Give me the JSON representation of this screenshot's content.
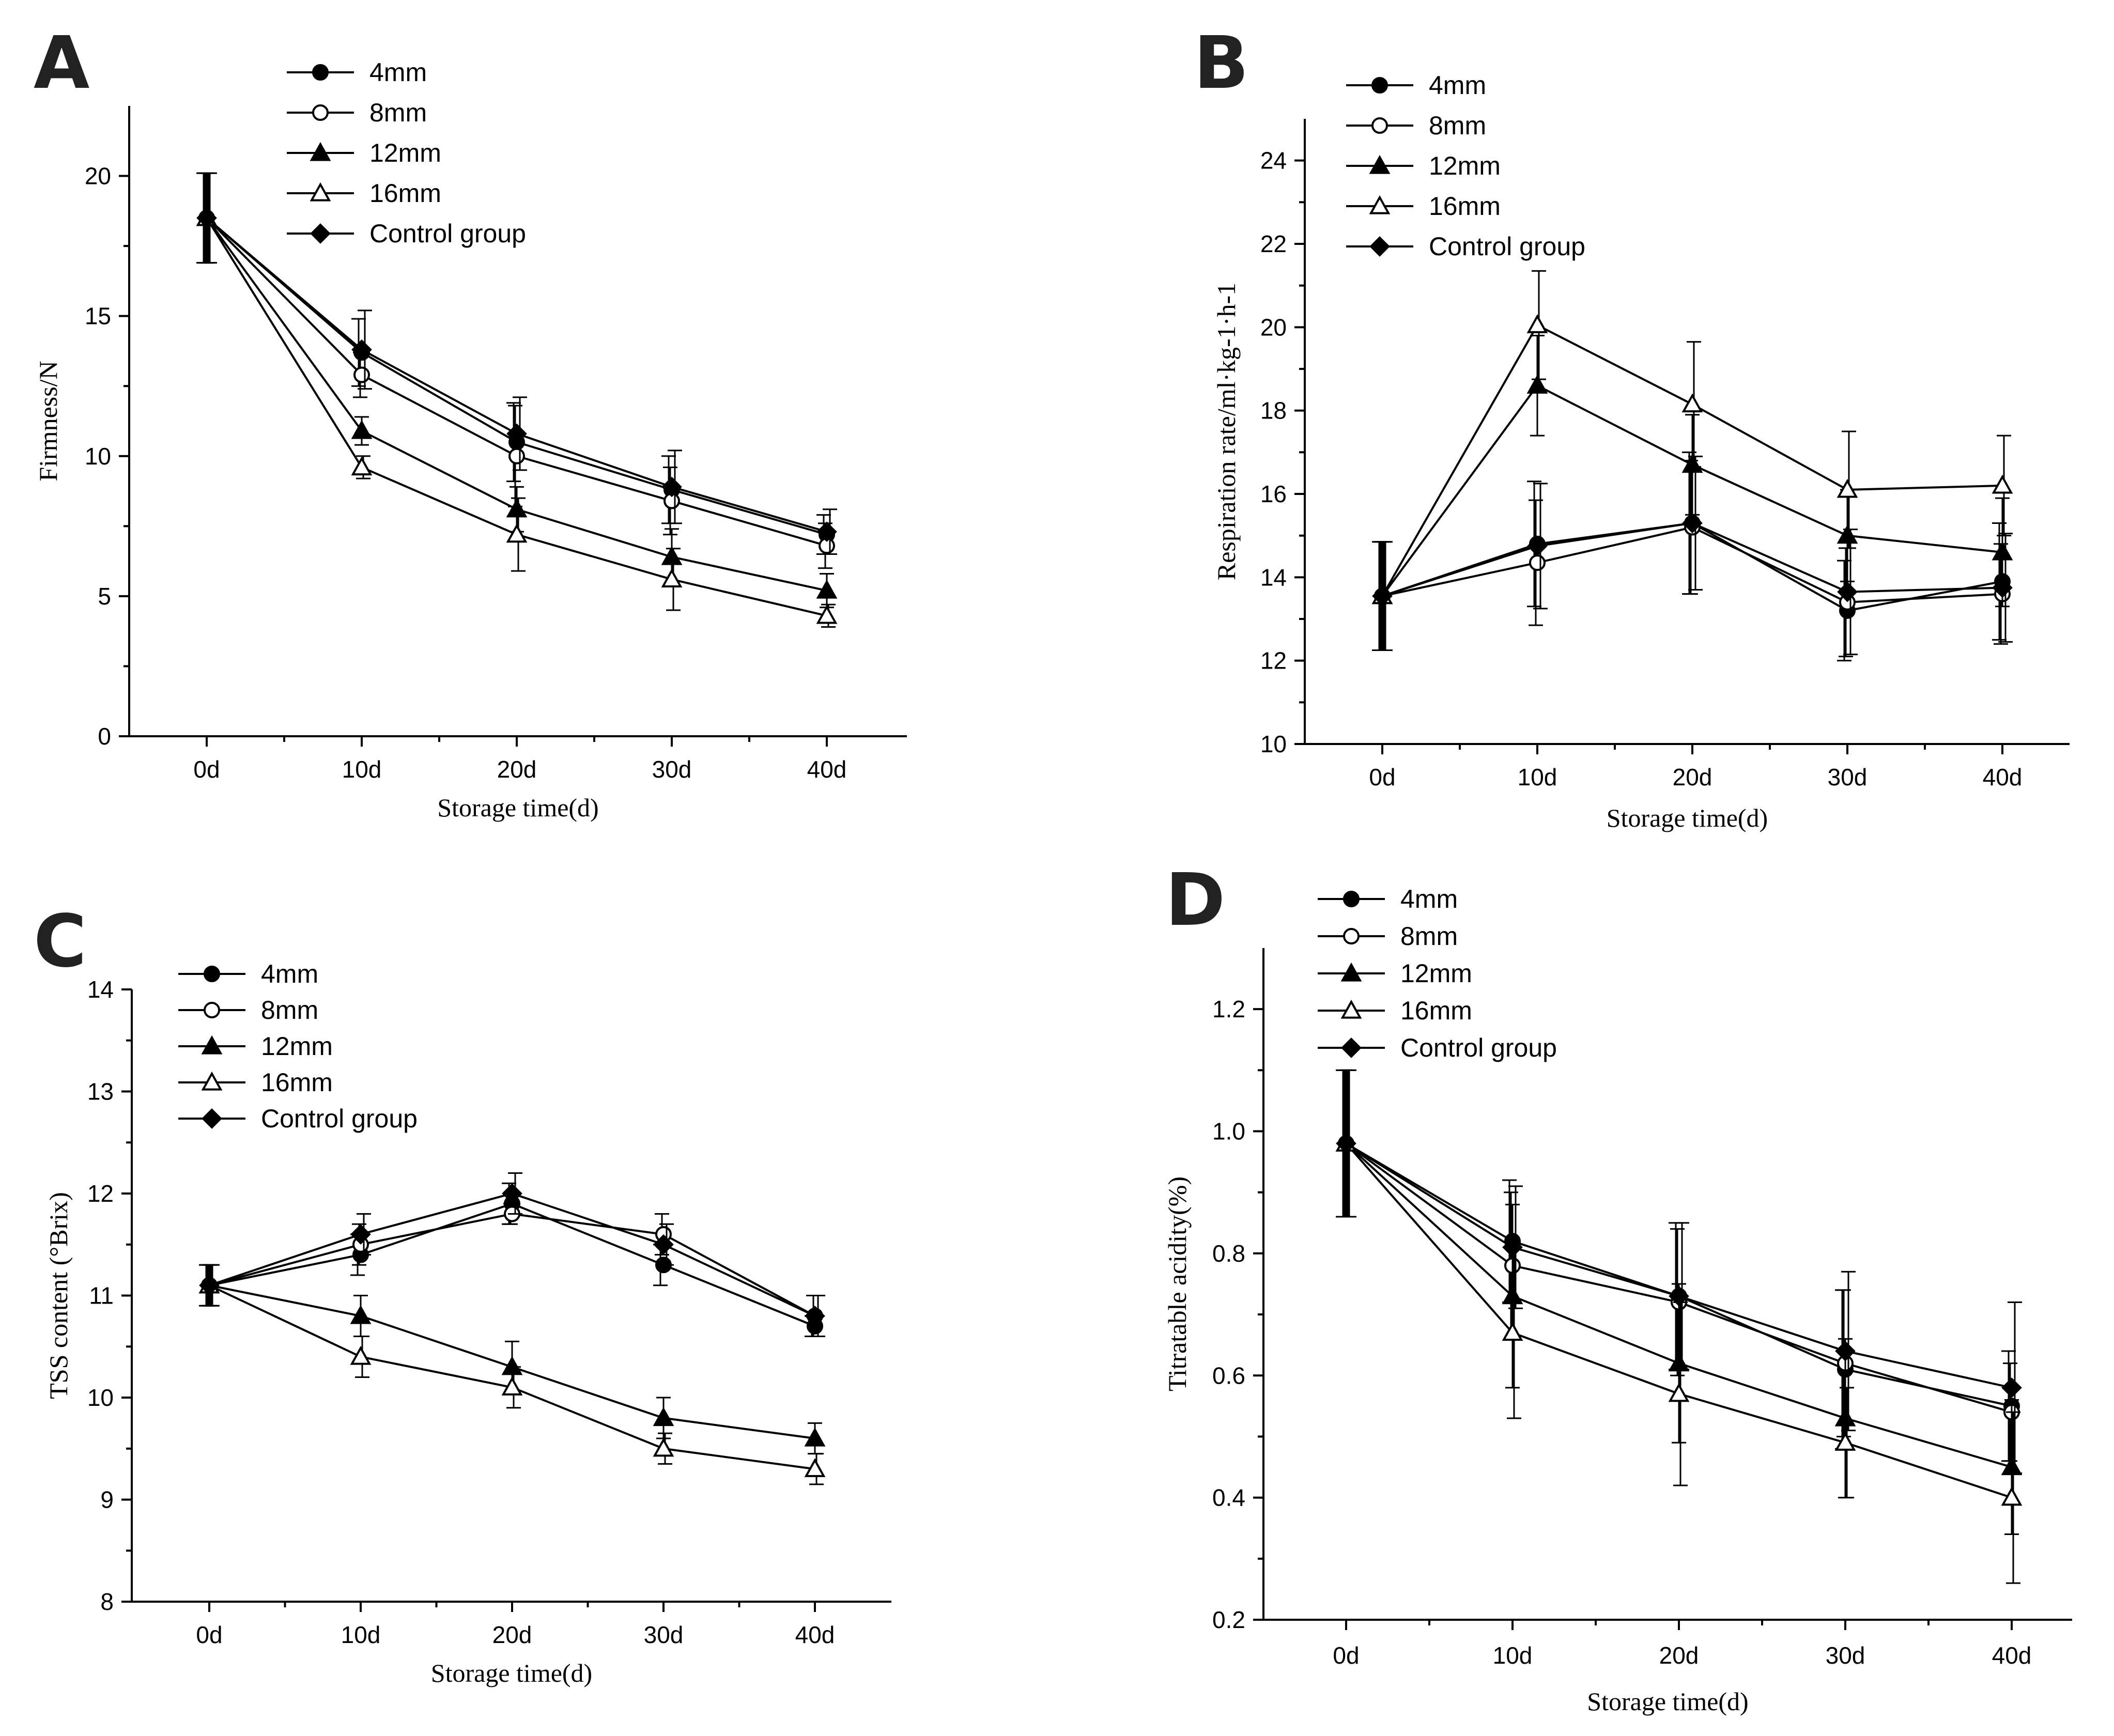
{
  "chart_data": [
    {
      "type": "line",
      "panel": "A",
      "categories": [
        "0d",
        "10d",
        "20d",
        "30d",
        "40d"
      ],
      "xlabel": "Storage time(d)",
      "ylabel": "Firmness/N",
      "ylim": [
        0,
        22.5
      ],
      "yticks": [
        "0",
        "5",
        "10",
        "15",
        "20"
      ],
      "series": [
        {
          "name": "4mm",
          "marker": "filled-circle",
          "values": [
            18.5,
            13.7,
            10.5,
            8.8,
            7.2
          ],
          "errors": [
            1.6,
            1.2,
            1.4,
            1.2,
            0.7
          ]
        },
        {
          "name": "8mm",
          "marker": "open-circle",
          "values": [
            18.5,
            12.9,
            10.0,
            8.4,
            6.8
          ],
          "errors": [
            1.6,
            0.8,
            1.8,
            1.2,
            0.8
          ]
        },
        {
          "name": "12mm",
          "marker": "filled-triangle",
          "values": [
            18.5,
            10.9,
            8.1,
            6.4,
            5.2
          ],
          "errors": [
            1.6,
            0.5,
            0.8,
            1.0,
            0.6
          ]
        },
        {
          "name": "16mm",
          "marker": "open-triangle",
          "values": [
            18.5,
            9.6,
            7.2,
            5.6,
            4.3
          ],
          "errors": [
            1.6,
            0.4,
            1.3,
            1.1,
            0.4
          ]
        },
        {
          "name": "Control group",
          "marker": "filled-diamond",
          "values": [
            18.5,
            13.8,
            10.8,
            8.9,
            7.3
          ],
          "errors": [
            1.6,
            1.4,
            1.3,
            1.3,
            0.8
          ]
        }
      ]
    },
    {
      "type": "line",
      "panel": "B",
      "categories": [
        "0d",
        "10d",
        "20d",
        "30d",
        "40d"
      ],
      "xlabel": "Storage time(d)",
      "ylabel": "Respiration rate/ml·kg-1·h-1",
      "ylim": [
        10,
        25
      ],
      "yticks": [
        "10",
        "12",
        "14",
        "16",
        "18",
        "20",
        "22",
        "24"
      ],
      "series": [
        {
          "name": "4mm",
          "marker": "filled-circle",
          "values": [
            13.55,
            14.8,
            15.3,
            13.2,
            13.9
          ],
          "errors": [
            1.3,
            1.5,
            1.7,
            1.2,
            1.4
          ]
        },
        {
          "name": "8mm",
          "marker": "open-circle",
          "values": [
            13.55,
            14.35,
            15.2,
            13.4,
            13.6
          ],
          "errors": [
            1.3,
            1.5,
            1.6,
            1.3,
            1.2
          ]
        },
        {
          "name": "12mm",
          "marker": "filled-triangle",
          "values": [
            13.55,
            18.6,
            16.7,
            15.0,
            14.6
          ],
          "errors": [
            1.3,
            1.2,
            1.2,
            1.1,
            1.3
          ]
        },
        {
          "name": "16mm",
          "marker": "open-triangle",
          "values": [
            13.55,
            20.05,
            18.15,
            16.1,
            16.2
          ],
          "errors": [
            1.3,
            1.3,
            1.5,
            1.4,
            1.2
          ]
        },
        {
          "name": "Control group",
          "marker": "filled-diamond",
          "values": [
            13.55,
            14.75,
            15.3,
            13.65,
            13.75
          ],
          "errors": [
            1.3,
            1.5,
            1.6,
            1.5,
            1.3
          ]
        }
      ]
    },
    {
      "type": "line",
      "panel": "C",
      "categories": [
        "0d",
        "10d",
        "20d",
        "30d",
        "40d"
      ],
      "xlabel": "Storage time(d)",
      "ylabel": "TSS content (°Brix)",
      "ylim": [
        8,
        14
      ],
      "yticks": [
        "8",
        "9",
        "10",
        "11",
        "12",
        "13",
        "14"
      ],
      "series": [
        {
          "name": "4mm",
          "marker": "filled-circle",
          "values": [
            11.1,
            11.4,
            11.9,
            11.3,
            10.7
          ],
          "errors": [
            0.2,
            0.2,
            0.2,
            0.2,
            0.1
          ]
        },
        {
          "name": "8mm",
          "marker": "open-circle",
          "values": [
            11.1,
            11.5,
            11.8,
            11.6,
            10.8
          ],
          "errors": [
            0.2,
            0.2,
            0.1,
            0.2,
            0.2
          ]
        },
        {
          "name": "12mm",
          "marker": "filled-triangle",
          "values": [
            11.1,
            10.8,
            10.3,
            9.8,
            9.6
          ],
          "errors": [
            0.2,
            0.2,
            0.25,
            0.2,
            0.15
          ]
        },
        {
          "name": "16mm",
          "marker": "open-triangle",
          "values": [
            11.1,
            10.4,
            10.1,
            9.5,
            9.3
          ],
          "errors": [
            0.2,
            0.2,
            0.2,
            0.15,
            0.15
          ]
        },
        {
          "name": "Control group",
          "marker": "filled-diamond",
          "values": [
            11.1,
            11.6,
            12.0,
            11.5,
            10.8
          ],
          "errors": [
            0.2,
            0.2,
            0.2,
            0.2,
            0.2
          ]
        }
      ]
    },
    {
      "type": "line",
      "panel": "D",
      "categories": [
        "0d",
        "10d",
        "20d",
        "30d",
        "40d"
      ],
      "xlabel": "Storage time(d)",
      "ylabel": "Titratable acidity(%)",
      "ylim": [
        0.2,
        1.3
      ],
      "yticks": [
        "0.2",
        "0.4",
        "0.6",
        "0.8",
        "1.0",
        "1.2"
      ],
      "series": [
        {
          "name": "4mm",
          "marker": "filled-circle",
          "values": [
            0.98,
            0.82,
            0.73,
            0.61,
            0.55
          ],
          "errors": [
            0.12,
            0.1,
            0.12,
            0.13,
            0.09
          ]
        },
        {
          "name": "8mm",
          "marker": "open-circle",
          "values": [
            0.98,
            0.78,
            0.72,
            0.62,
            0.54
          ],
          "errors": [
            0.12,
            0.12,
            0.12,
            0.12,
            0.08
          ]
        },
        {
          "name": "12mm",
          "marker": "filled-triangle",
          "values": [
            0.98,
            0.73,
            0.62,
            0.53,
            0.45
          ],
          "errors": [
            0.12,
            0.15,
            0.13,
            0.13,
            0.11
          ]
        },
        {
          "name": "16mm",
          "marker": "open-triangle",
          "values": [
            0.98,
            0.67,
            0.57,
            0.49,
            0.4
          ],
          "errors": [
            0.12,
            0.14,
            0.15,
            0.09,
            0.14
          ]
        },
        {
          "name": "Control group",
          "marker": "filled-diamond",
          "values": [
            0.98,
            0.81,
            0.73,
            0.64,
            0.58
          ],
          "errors": [
            0.12,
            0.1,
            0.12,
            0.13,
            0.14
          ]
        }
      ]
    }
  ]
}
